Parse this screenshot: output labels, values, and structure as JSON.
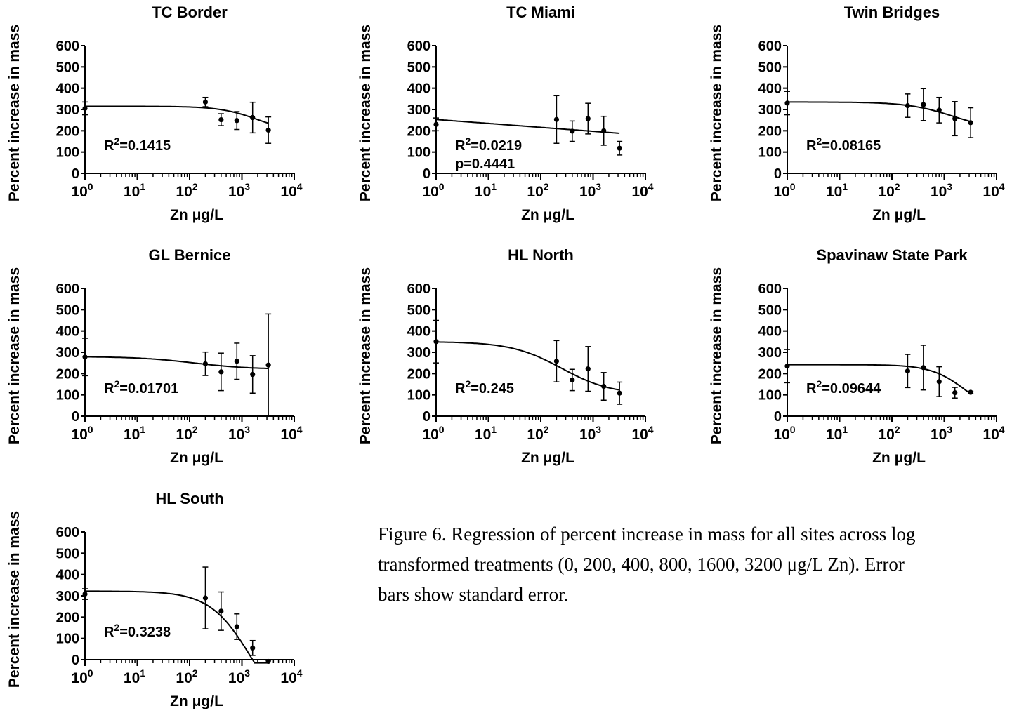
{
  "figure_caption": [
    "Figure 6. Regression of percent increase in mass for all sites across log",
    "transformed treatments (0, 200, 400, 800, 1600, 3200 μg/L Zn). Error",
    "bars show standard error."
  ],
  "chart_data": [
    {
      "type": "scatter",
      "title": "TC Border",
      "xlabel": "Zn μg/L",
      "ylabel": "Percent increase in mass",
      "xscale": "log",
      "xlim": [
        1,
        10000
      ],
      "ylim": [
        0,
        600
      ],
      "xticks": [
        "0",
        "1",
        "2",
        "3",
        "4"
      ],
      "yticks": [
        0,
        100,
        200,
        300,
        400,
        500,
        600
      ],
      "x": [
        1,
        200,
        400,
        800,
        1600,
        3200
      ],
      "y": [
        305,
        335,
        252,
        248,
        262,
        203
      ],
      "yerr": [
        30,
        22,
        28,
        42,
        72,
        62
      ],
      "fit": {
        "type": "sigmoid",
        "top": 315,
        "bottom": 190,
        "ec50": 2000,
        "hill": 1.2
      },
      "annotations": [
        "R²=0.1415"
      ]
    },
    {
      "type": "scatter",
      "title": "TC Miami",
      "xlabel": "Zn μg/L",
      "ylabel": "Percent increase in mass",
      "xscale": "log",
      "xlim": [
        1,
        10000
      ],
      "ylim": [
        0,
        600
      ],
      "xticks": [
        "0",
        "1",
        "2",
        "3",
        "4"
      ],
      "yticks": [
        0,
        100,
        200,
        300,
        400,
        500,
        600
      ],
      "x": [
        1,
        200,
        400,
        800,
        1600,
        3200
      ],
      "y": [
        230,
        253,
        198,
        257,
        200,
        118
      ],
      "yerr": [
        30,
        112,
        48,
        72,
        68,
        32
      ],
      "fit": {
        "type": "linear",
        "intercept": 253,
        "slope_per_decade": -18.5
      },
      "annotations": [
        "R²=0.0219",
        "p=0.4441"
      ]
    },
    {
      "type": "scatter",
      "title": "Twin Bridges",
      "xlabel": "Zn μg/L",
      "ylabel": "Percent increase in mass",
      "xscale": "log",
      "xlim": [
        1,
        10000
      ],
      "ylim": [
        0,
        600
      ],
      "xticks": [
        "0",
        "1",
        "2",
        "3",
        "4"
      ],
      "yticks": [
        0,
        100,
        200,
        300,
        400,
        500,
        600
      ],
      "x": [
        1,
        200,
        400,
        800,
        1600,
        3200
      ],
      "y": [
        330,
        318,
        323,
        297,
        257,
        238
      ],
      "yerr": [
        55,
        55,
        75,
        60,
        80,
        70
      ],
      "fit": {
        "type": "sigmoid",
        "top": 335,
        "bottom": 200,
        "ec50": 1500,
        "hill": 1.0
      },
      "annotations": [
        "R²=0.08165"
      ]
    },
    {
      "type": "scatter",
      "title": "GL Bernice",
      "xlabel": "Zn μg/L",
      "ylabel": "Percent increase in mass",
      "xscale": "log",
      "xlim": [
        1,
        10000
      ],
      "ylim": [
        0,
        600
      ],
      "xticks": [
        "0",
        "1",
        "2",
        "3",
        "4"
      ],
      "yticks": [
        0,
        100,
        200,
        300,
        400,
        500,
        600
      ],
      "x": [
        1,
        200,
        400,
        800,
        1600,
        3200
      ],
      "y": [
        278,
        246,
        208,
        258,
        196,
        240
      ],
      "yerr": [
        88,
        55,
        88,
        85,
        88,
        240
      ],
      "fit": {
        "type": "sigmoid",
        "top": 280,
        "bottom": 220,
        "ec50": 120,
        "hill": 0.8
      },
      "annotations": [
        "R²=0.01701"
      ]
    },
    {
      "type": "scatter",
      "title": "HL North",
      "xlabel": "Zn μg/L",
      "ylabel": "Percent increase in mass",
      "xscale": "log",
      "xlim": [
        1,
        10000
      ],
      "ylim": [
        0,
        600
      ],
      "xticks": [
        "0",
        "1",
        "2",
        "3",
        "4"
      ],
      "yticks": [
        0,
        100,
        200,
        300,
        400,
        500,
        600
      ],
      "x": [
        1,
        200,
        400,
        800,
        1600,
        3200
      ],
      "y": [
        350,
        258,
        170,
        222,
        140,
        108
      ],
      "yerr": [
        100,
        97,
        50,
        105,
        65,
        52
      ],
      "fit": {
        "type": "sigmoid",
        "top": 350,
        "bottom": 100,
        "ec50": 250,
        "hill": 0.9
      },
      "annotations": [
        "R²=0.245"
      ]
    },
    {
      "type": "scatter",
      "title": "Spavinaw State Park",
      "xlabel": "Zn μg/L",
      "ylabel": "Percent increase in mass",
      "xscale": "log",
      "xlim": [
        1,
        10000
      ],
      "ylim": [
        0,
        600
      ],
      "xticks": [
        "0",
        "1",
        "2",
        "3",
        "4"
      ],
      "yticks": [
        0,
        100,
        200,
        300,
        400,
        500,
        600
      ],
      "x": [
        1,
        200,
        400,
        800,
        1600,
        3200
      ],
      "y": [
        235,
        212,
        228,
        162,
        110,
        112
      ],
      "yerr": [
        78,
        78,
        105,
        70,
        25,
        5
      ],
      "fit": {
        "type": "sigmoid",
        "top": 242,
        "bottom": 0,
        "ec50": 2600,
        "hill": 1.3
      },
      "annotations": [
        "R²=0.09644"
      ]
    },
    {
      "type": "scatter",
      "title": "HL South",
      "xlabel": "Zn μg/L",
      "ylabel": "Percent increase in mass",
      "xscale": "log",
      "xlim": [
        1,
        10000
      ],
      "ylim": [
        0,
        600
      ],
      "xticks": [
        "0",
        "1",
        "2",
        "3",
        "4"
      ],
      "yticks": [
        0,
        100,
        200,
        300,
        400,
        500,
        600
      ],
      "x": [
        1,
        200,
        400,
        800,
        1600,
        3200
      ],
      "y": [
        308,
        290,
        228,
        155,
        55,
        -8
      ],
      "yerr": [
        25,
        145,
        90,
        60,
        35,
        5
      ],
      "fit": {
        "type": "sigmoid",
        "top": 322,
        "bottom": -300,
        "ec50": 1500,
        "hill": 1.1
      },
      "annotations": [
        "R²=0.3238"
      ]
    }
  ]
}
